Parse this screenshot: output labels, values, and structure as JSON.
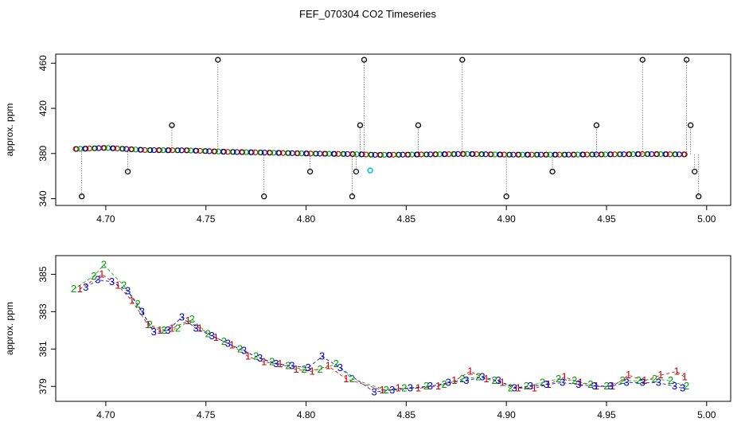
{
  "title": "FEF_070304  CO2 Timeseries",
  "chart_data": [
    {
      "type": "scatter",
      "ylabel": "approx. ppm",
      "xlim": [
        4.675,
        5.012
      ],
      "ylim": [
        334,
        468
      ],
      "xticks": [
        "4.70",
        "4.75",
        "4.80",
        "4.85",
        "4.90",
        "4.95",
        "5.00"
      ],
      "xtick_values": [
        4.7,
        4.75,
        4.8,
        4.85,
        4.9,
        4.95,
        5.0
      ],
      "yticks": [
        "340",
        "380",
        "420",
        "460"
      ],
      "ytick_values": [
        340,
        380,
        420,
        460
      ],
      "series_colors": [
        "#d00000",
        "#00a000",
        "#0000d0",
        "#000000"
      ],
      "baseline": [
        [
          4.685,
          384
        ],
        [
          4.7,
          385
        ],
        [
          4.72,
          383
        ],
        [
          4.74,
          382.8
        ],
        [
          4.76,
          381.5
        ],
        [
          4.78,
          380.8
        ],
        [
          4.8,
          380
        ],
        [
          4.823,
          379.5
        ],
        [
          4.835,
          378.8
        ],
        [
          4.85,
          379
        ],
        [
          4.88,
          379.6
        ],
        [
          4.9,
          379
        ],
        [
          4.93,
          379
        ],
        [
          4.95,
          379.2
        ],
        [
          4.97,
          379.5
        ],
        [
          4.99,
          379.2
        ]
      ],
      "spikes": [
        [
          4.688,
          342
        ],
        [
          4.711,
          364
        ],
        [
          4.733,
          405
        ],
        [
          4.756,
          463
        ],
        [
          4.779,
          342
        ],
        [
          4.802,
          364
        ],
        [
          4.823,
          342
        ],
        [
          4.825,
          364
        ],
        [
          4.827,
          405
        ],
        [
          4.829,
          463
        ],
        [
          4.856,
          405
        ],
        [
          4.878,
          463
        ],
        [
          4.9,
          342
        ],
        [
          4.923,
          364
        ],
        [
          4.945,
          405
        ],
        [
          4.968,
          463
        ],
        [
          4.99,
          463
        ],
        [
          4.992,
          405
        ],
        [
          4.994,
          364
        ],
        [
          4.996,
          342
        ]
      ],
      "highlight": {
        "x": 4.832,
        "y": 365,
        "color": "#00c8d0"
      }
    },
    {
      "type": "scatter",
      "ylabel": "approx. ppm",
      "xlim": [
        4.675,
        5.012
      ],
      "ylim": [
        378.2,
        386.0
      ],
      "xticks": [
        "4.70",
        "4.75",
        "4.80",
        "4.85",
        "4.90",
        "4.95",
        "5.00"
      ],
      "xtick_values": [
        4.7,
        4.75,
        4.8,
        4.85,
        4.9,
        4.95,
        5.0
      ],
      "yticks": [
        "379",
        "381",
        "383",
        "385"
      ],
      "ytick_values": [
        379,
        381,
        383,
        385
      ],
      "series": [
        {
          "name": "1",
          "color": "#d00000",
          "points": [
            [
              4.687,
              384.2
            ],
            [
              4.698,
              385.0
            ],
            [
              4.706,
              384.4
            ],
            [
              4.713,
              383.6
            ],
            [
              4.721,
              382.3
            ],
            [
              4.727,
              382.0
            ],
            [
              4.733,
              382.1
            ],
            [
              4.741,
              382.5
            ],
            [
              4.747,
              382.1
            ],
            [
              4.755,
              381.6
            ],
            [
              4.763,
              381.2
            ],
            [
              4.771,
              380.6
            ],
            [
              4.779,
              380.3
            ],
            [
              4.787,
              380.2
            ],
            [
              4.795,
              379.9
            ],
            [
              4.803,
              379.8
            ],
            [
              4.811,
              380.1
            ],
            [
              4.82,
              379.4
            ],
            [
              4.838,
              378.8
            ],
            [
              4.846,
              378.9
            ],
            [
              4.856,
              378.9
            ],
            [
              4.866,
              379.0
            ],
            [
              4.874,
              379.3
            ],
            [
              4.882,
              379.8
            ],
            [
              4.89,
              379.4
            ],
            [
              4.898,
              379.2
            ],
            [
              4.906,
              378.9
            ],
            [
              4.914,
              378.9
            ],
            [
              4.921,
              379.1
            ],
            [
              4.929,
              379.5
            ],
            [
              4.937,
              379.2
            ],
            [
              4.945,
              379.0
            ],
            [
              4.953,
              379.0
            ],
            [
              4.961,
              379.6
            ],
            [
              4.969,
              379.3
            ],
            [
              4.977,
              379.6
            ],
            [
              4.985,
              379.8
            ],
            [
              4.989,
              379.5
            ]
          ]
        },
        {
          "name": "2",
          "color": "#00a000",
          "points": [
            [
              4.684,
              384.2
            ],
            [
              4.694,
              384.9
            ],
            [
              4.699,
              385.5
            ],
            [
              4.709,
              384.4
            ],
            [
              4.716,
              383.4
            ],
            [
              4.722,
              382.3
            ],
            [
              4.729,
              382.0
            ],
            [
              4.736,
              382.1
            ],
            [
              4.743,
              382.6
            ],
            [
              4.751,
              381.8
            ],
            [
              4.759,
              381.4
            ],
            [
              4.767,
              381.0
            ],
            [
              4.775,
              380.6
            ],
            [
              4.783,
              380.3
            ],
            [
              4.791,
              380.1
            ],
            [
              4.799,
              379.9
            ],
            [
              4.807,
              379.9
            ],
            [
              4.815,
              380.2
            ],
            [
              4.823,
              379.4
            ],
            [
              4.84,
              378.8
            ],
            [
              4.849,
              378.9
            ],
            [
              4.86,
              379.0
            ],
            [
              4.869,
              379.1
            ],
            [
              4.878,
              379.4
            ],
            [
              4.886,
              379.5
            ],
            [
              4.894,
              379.3
            ],
            [
              4.902,
              378.9
            ],
            [
              4.91,
              379.0
            ],
            [
              4.918,
              379.2
            ],
            [
              4.926,
              379.4
            ],
            [
              4.934,
              379.3
            ],
            [
              4.942,
              379.1
            ],
            [
              4.95,
              379.0
            ],
            [
              4.958,
              379.3
            ],
            [
              4.966,
              379.3
            ],
            [
              4.974,
              379.4
            ],
            [
              4.982,
              379.3
            ],
            [
              4.99,
              379.0
            ]
          ]
        },
        {
          "name": "3",
          "color": "#0000d0",
          "points": [
            [
              4.69,
              384.3
            ],
            [
              4.696,
              384.7
            ],
            [
              4.703,
              384.6
            ],
            [
              4.711,
              384.1
            ],
            [
              4.718,
              383.0
            ],
            [
              4.724,
              381.9
            ],
            [
              4.731,
              382.0
            ],
            [
              4.738,
              382.7
            ],
            [
              4.745,
              382.1
            ],
            [
              4.753,
              381.7
            ],
            [
              4.761,
              381.3
            ],
            [
              4.769,
              380.9
            ],
            [
              4.777,
              380.5
            ],
            [
              4.785,
              380.2
            ],
            [
              4.793,
              380.1
            ],
            [
              4.801,
              380.0
            ],
            [
              4.808,
              380.6
            ],
            [
              4.817,
              380.0
            ],
            [
              4.834,
              378.7
            ],
            [
              4.843,
              378.8
            ],
            [
              4.852,
              378.9
            ],
            [
              4.862,
              379.0
            ],
            [
              4.871,
              379.2
            ],
            [
              4.88,
              379.3
            ],
            [
              4.888,
              379.5
            ],
            [
              4.896,
              379.3
            ],
            [
              4.904,
              378.9
            ],
            [
              4.912,
              379.0
            ],
            [
              4.92,
              379.1
            ],
            [
              4.928,
              379.2
            ],
            [
              4.936,
              379.1
            ],
            [
              4.944,
              379.0
            ],
            [
              4.952,
              379.0
            ],
            [
              4.96,
              379.2
            ],
            [
              4.968,
              379.2
            ],
            [
              4.976,
              379.2
            ],
            [
              4.984,
              379.0
            ],
            [
              4.988,
              378.9
            ]
          ]
        }
      ]
    }
  ]
}
